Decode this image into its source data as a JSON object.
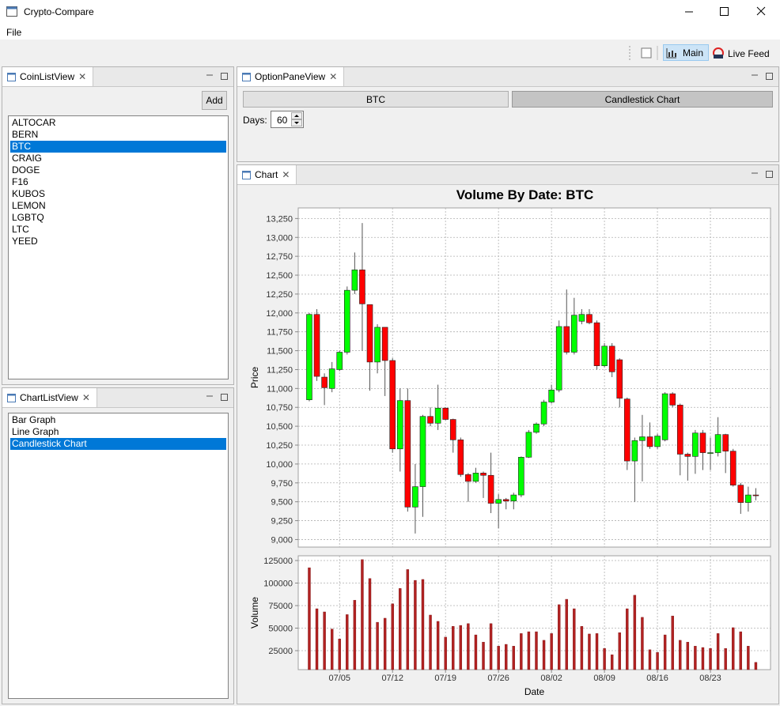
{
  "window": {
    "title": "Crypto-Compare"
  },
  "menu": [
    "File"
  ],
  "toolbar": [
    "Main",
    "Live Feed"
  ],
  "coin_list_view": {
    "title": "CoinListView",
    "add_button": "Add",
    "items": [
      "ALTOCAR",
      "BERN",
      "BTC",
      "CRAIG",
      "DOGE",
      "F16",
      "KUBOS",
      "LEMON",
      "LGBTQ",
      "LTC",
      "YEED"
    ],
    "selected": 2
  },
  "chart_list_view": {
    "title": "ChartListView",
    "items": [
      "Bar Graph",
      "Line Graph",
      "Candlestick Chart"
    ],
    "selected": 2
  },
  "option_pane_view": {
    "title": "OptionPaneView",
    "coin_button": "BTC",
    "chart_button": "Candlestick Chart",
    "days_label": "Days:",
    "days": 60
  },
  "chart_view": {
    "title": "Chart"
  },
  "chart_data": [
    {
      "type": "candlestick",
      "title": "Volume By Date: BTC",
      "y_label": "Price",
      "up_color": "#00ff00",
      "down_color": "#ff0000",
      "grid": true,
      "open": [
        10850,
        11980,
        11150,
        11000,
        11250,
        11480,
        12300,
        12570,
        12110,
        11350,
        11810,
        11370,
        10200,
        10840,
        9430,
        9700,
        10630,
        10540,
        10740,
        10590,
        10320,
        9860,
        9770,
        9880,
        9850,
        9480,
        9530,
        9510,
        9590,
        10090,
        10420,
        10530,
        10820,
        10980,
        11820,
        11480,
        11890,
        11980,
        11870,
        11300,
        11560,
        11380,
        10860,
        10040,
        10310,
        10360,
        10230,
        10320,
        10930,
        10780,
        10130,
        10100,
        10410,
        10140,
        10150,
        10390,
        10170,
        9720,
        9490,
        9590
      ],
      "high": [
        12000,
        12050,
        11200,
        11350,
        11500,
        12350,
        12800,
        13190,
        12110,
        11850,
        11810,
        11400,
        11000,
        11000,
        10000,
        10650,
        10750,
        11050,
        10750,
        10600,
        10350,
        9880,
        9950,
        9900,
        10150,
        9600,
        9550,
        9620,
        10100,
        10450,
        10550,
        10850,
        11050,
        11900,
        12310,
        12200,
        12050,
        12050,
        11900,
        11600,
        11600,
        11400,
        10880,
        10350,
        10650,
        10550,
        10400,
        10950,
        10950,
        10800,
        10150,
        10450,
        10450,
        10350,
        10620,
        10400,
        10200,
        9750,
        9700,
        9680
      ],
      "low": [
        10830,
        11100,
        10780,
        10950,
        11230,
        11450,
        12250,
        11500,
        10970,
        11200,
        10900,
        10150,
        9900,
        9370,
        9080,
        9300,
        10500,
        10450,
        10580,
        10150,
        9830,
        9500,
        9750,
        9550,
        9350,
        9150,
        9400,
        9400,
        9560,
        10080,
        10400,
        10500,
        10800,
        10950,
        11450,
        11450,
        11850,
        11850,
        11250,
        11280,
        11150,
        10750,
        9920,
        9500,
        9770,
        10200,
        10200,
        10300,
        10750,
        9850,
        9780,
        9870,
        9920,
        9920,
        10100,
        9880,
        9700,
        9340,
        9370,
        9520
      ],
      "close": [
        11980,
        11160,
        11010,
        11260,
        11480,
        12300,
        12570,
        12120,
        11350,
        11810,
        11370,
        10200,
        10840,
        9430,
        9700,
        10630,
        10540,
        10740,
        10590,
        10320,
        9860,
        9770,
        9880,
        9850,
        9480,
        9530,
        9510,
        9590,
        10090,
        10420,
        10530,
        10820,
        10980,
        11820,
        11480,
        11970,
        11980,
        11870,
        11300,
        11560,
        11220,
        10870,
        10040,
        10310,
        10360,
        10230,
        10370,
        10930,
        10780,
        10130,
        10100,
        10410,
        10150,
        10150,
        10390,
        10170,
        9720,
        9490,
        9590,
        9580
      ],
      "ylim": [
        8900,
        13390
      ],
      "yticks": [
        {
          "value": 9000,
          "label": "9,000"
        },
        {
          "value": 9250,
          "label": "9,250"
        },
        {
          "value": 9500,
          "label": "9,500"
        },
        {
          "value": 9750,
          "label": "9,750"
        },
        {
          "value": 10000,
          "label": "10,000"
        },
        {
          "value": 10250,
          "label": "10,250"
        },
        {
          "value": 10500,
          "label": "10,500"
        },
        {
          "value": 10750,
          "label": "10,750"
        },
        {
          "value": 11000,
          "label": "11,000"
        },
        {
          "value": 11250,
          "label": "11,250"
        },
        {
          "value": 11500,
          "label": "11,500"
        },
        {
          "value": 11750,
          "label": "11,750"
        },
        {
          "value": 12000,
          "label": "12,000"
        },
        {
          "value": 12250,
          "label": "12,250"
        },
        {
          "value": 12500,
          "label": "12,500"
        },
        {
          "value": 12750,
          "label": "12,750"
        },
        {
          "value": 13000,
          "label": "13,000"
        },
        {
          "value": 13250,
          "label": "13,250"
        }
      ]
    },
    {
      "type": "bar",
      "y_label": "Volume",
      "x_label": "Date",
      "color": "#b22222",
      "grid": true,
      "categories": [
        null,
        null,
        null,
        null,
        "07/05",
        null,
        null,
        null,
        null,
        null,
        null,
        "07/12",
        null,
        null,
        null,
        null,
        null,
        null,
        "07/19",
        null,
        null,
        null,
        null,
        null,
        null,
        "07/26",
        null,
        null,
        null,
        null,
        null,
        null,
        "08/02",
        null,
        null,
        null,
        null,
        null,
        null,
        "08/09",
        null,
        null,
        null,
        null,
        null,
        null,
        "08/16",
        null,
        null,
        null,
        null,
        null,
        null,
        "08/23",
        null,
        null,
        null,
        null,
        null,
        null
      ],
      "values": [
        117000,
        71500,
        68000,
        49000,
        38000,
        65000,
        81000,
        126000,
        105000,
        56500,
        61000,
        77000,
        94000,
        115000,
        103000,
        104000,
        64500,
        57500,
        40000,
        52000,
        53000,
        55000,
        42500,
        34500,
        55000,
        30000,
        32000,
        30000,
        44000,
        46000,
        46000,
        36500,
        44000,
        76000,
        82000,
        71500,
        52000,
        43500,
        44000,
        27500,
        20500,
        45000,
        71500,
        86500,
        62000,
        26000,
        23000,
        42500,
        63500,
        36500,
        34500,
        30000,
        28500,
        27500,
        44000,
        27500,
        50500,
        46000,
        30000,
        12000
      ],
      "ylim": [
        3950,
        130260
      ],
      "yticks": [
        25000,
        50000,
        75000,
        100000,
        125000
      ]
    }
  ]
}
